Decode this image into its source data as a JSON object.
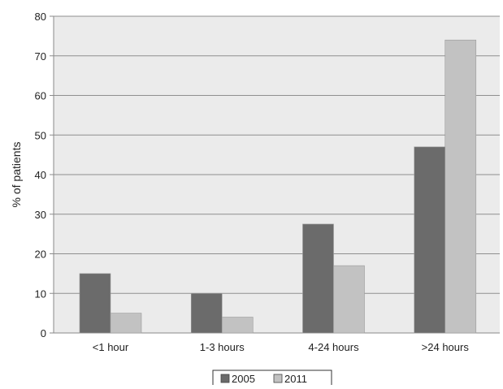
{
  "chart_data": {
    "type": "bar",
    "title": "",
    "xlabel": "",
    "ylabel": "% of patients",
    "ylim": [
      0,
      80
    ],
    "yticks": [
      "0",
      "10",
      "20",
      "30",
      "40",
      "50",
      "60",
      "70",
      "80"
    ],
    "categories": [
      "<1 hour",
      "1-3 hours",
      "4-24 hours",
      ">24 hours"
    ],
    "series": [
      {
        "name": "2005",
        "color": "#6b6b6b",
        "values": [
          15,
          10,
          27.5,
          47
        ]
      },
      {
        "name": "2011",
        "color": "#c2c2c2",
        "values": [
          5,
          4,
          17,
          74
        ]
      }
    ],
    "grid": true,
    "legend_position": "bottom-center"
  }
}
